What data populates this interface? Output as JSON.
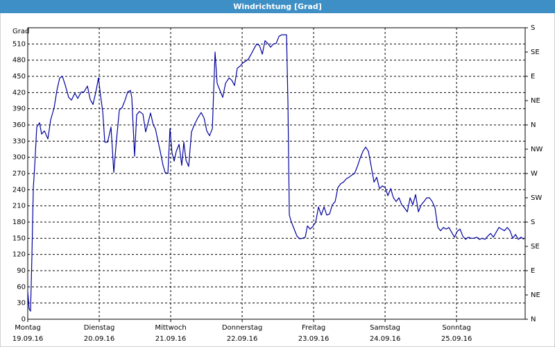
{
  "chart_data": {
    "type": "line",
    "title": "Windrichtung [Grad]",
    "y_label": "Grad",
    "x": [
      0,
      0.019,
      0.039,
      0.058,
      0.078,
      0.097,
      0.126,
      0.165,
      0.194,
      0.233,
      0.282,
      0.32,
      0.369,
      0.408,
      0.447,
      0.485,
      0.524,
      0.573,
      0.612,
      0.66,
      0.699,
      0.748,
      0.786,
      0.835,
      0.874,
      0.913,
      0.951,
      0.99,
      1.019,
      1.049,
      1.078,
      1.117,
      1.165,
      1.204,
      1.243,
      1.282,
      1.32,
      1.359,
      1.398,
      1.437,
      1.456,
      1.495,
      1.524,
      1.563,
      1.612,
      1.65,
      1.68,
      1.718,
      1.757,
      1.786,
      1.816,
      1.854,
      1.893,
      1.922,
      1.961,
      1.99,
      2.019,
      2.049,
      2.078,
      2.117,
      2.155,
      2.184,
      2.214,
      2.252,
      2.291,
      2.33,
      2.379,
      2.427,
      2.466,
      2.505,
      2.544,
      2.583,
      2.621,
      2.65,
      2.689,
      2.728,
      2.767,
      2.816,
      2.854,
      2.893,
      2.932,
      2.971,
      3.01,
      3.049,
      3.087,
      3.126,
      3.165,
      3.204,
      3.243,
      3.282,
      3.32,
      3.359,
      3.398,
      3.437,
      3.476,
      3.515,
      3.553,
      3.592,
      3.621,
      3.641,
      3.66,
      3.689,
      3.728,
      3.767,
      3.806,
      3.845,
      3.883,
      3.913,
      3.951,
      3.99,
      4.029,
      4.068,
      4.107,
      4.146,
      4.184,
      4.223,
      4.262,
      4.301,
      4.34,
      4.379,
      4.417,
      4.456,
      4.495,
      4.534,
      4.573,
      4.612,
      4.65,
      4.689,
      4.728,
      4.767,
      4.806,
      4.845,
      4.883,
      4.922,
      4.961,
      5.0,
      5.039,
      5.078,
      5.117,
      5.155,
      5.194,
      5.233,
      5.272,
      5.311,
      5.35,
      5.388,
      5.427,
      5.466,
      5.505,
      5.544,
      5.583,
      5.621,
      5.66,
      5.699,
      5.738,
      5.777,
      5.816,
      5.854,
      5.893,
      5.932,
      5.971,
      6.01,
      6.049,
      6.087,
      6.126,
      6.165,
      6.204,
      6.243,
      6.282,
      6.32,
      6.359,
      6.398,
      6.437,
      6.476,
      6.515,
      6.553,
      6.592,
      6.631,
      6.67,
      6.709,
      6.748,
      6.786,
      6.825,
      6.864,
      6.903,
      6.942
    ],
    "series": [
      {
        "color": "#00009c",
        "values": [
          51,
          19,
          15,
          116,
          244,
          283,
          356,
          364,
          343,
          349,
          334,
          369,
          392,
          424,
          447,
          450,
          434,
          411,
          406,
          419,
          409,
          421,
          421,
          432,
          407,
          398,
          420,
          447,
          414,
          385,
          328,
          328,
          356,
          272,
          334,
          388,
          392,
          405,
          421,
          424,
          411,
          302,
          379,
          385,
          380,
          347,
          362,
          382,
          360,
          353,
          334,
          311,
          285,
          272,
          270,
          353,
          308,
          293,
          311,
          324,
          285,
          328,
          295,
          283,
          347,
          360,
          373,
          383,
          373,
          349,
          340,
          353,
          495,
          437,
          424,
          411,
          437,
          447,
          443,
          433,
          465,
          469,
          475,
          478,
          482,
          491,
          501,
          510,
          507,
          491,
          516,
          511,
          504,
          510,
          511,
          524,
          527,
          527,
          527,
          398,
          193,
          180,
          167,
          154,
          149,
          150,
          152,
          173,
          167,
          172,
          180,
          208,
          193,
          208,
          193,
          195,
          212,
          218,
          244,
          251,
          254,
          260,
          263,
          267,
          270,
          283,
          298,
          311,
          319,
          311,
          283,
          254,
          263,
          242,
          247,
          244,
          229,
          242,
          225,
          218,
          225,
          212,
          206,
          199,
          225,
          212,
          231,
          199,
          212,
          218,
          225,
          225,
          218,
          206,
          170,
          164,
          170,
          167,
          170,
          161,
          152,
          163,
          167,
          154,
          148,
          152,
          150,
          150,
          152,
          148,
          150,
          148,
          154,
          159,
          152,
          161,
          170,
          167,
          164,
          170,
          164,
          150,
          157,
          148,
          152,
          148
        ]
      }
    ],
    "xlim": [
      0,
      6.96
    ],
    "xticks": [
      {
        "value": 0,
        "label": "Montag"
      },
      {
        "value": 1,
        "label": "Dienstag"
      },
      {
        "value": 2,
        "label": "Mittwoch"
      },
      {
        "value": 3,
        "label": "Donnerstag"
      },
      {
        "value": 4,
        "label": "Freitag"
      },
      {
        "value": 5,
        "label": "Samstag"
      },
      {
        "value": 6,
        "label": "Sonntag"
      }
    ],
    "xtick_dates": [
      "19.09.16",
      "20.09.16",
      "21.09.16",
      "22.09.16",
      "23.09.16",
      "24.09.16",
      "25.09.16"
    ],
    "ylim": [
      0,
      540
    ],
    "yticks": [
      0,
      30,
      60,
      90,
      120,
      150,
      180,
      210,
      240,
      270,
      300,
      330,
      360,
      390,
      420,
      450,
      480,
      510
    ],
    "y2lim": [
      0,
      540
    ],
    "y2ticks": [
      {
        "value": 0,
        "label": "N"
      },
      {
        "value": 45,
        "label": "NE"
      },
      {
        "value": 90,
        "label": "E"
      },
      {
        "value": 135,
        "label": "SE"
      },
      {
        "value": 180,
        "label": "S"
      },
      {
        "value": 225,
        "label": "SW"
      },
      {
        "value": 270,
        "label": "W"
      },
      {
        "value": 315,
        "label": "NW"
      },
      {
        "value": 360,
        "label": "N"
      },
      {
        "value": 405,
        "label": "NE"
      },
      {
        "value": 450,
        "label": "E"
      },
      {
        "value": 495,
        "label": "SE"
      },
      {
        "value": 540,
        "label": "S"
      }
    ],
    "grid": true
  }
}
